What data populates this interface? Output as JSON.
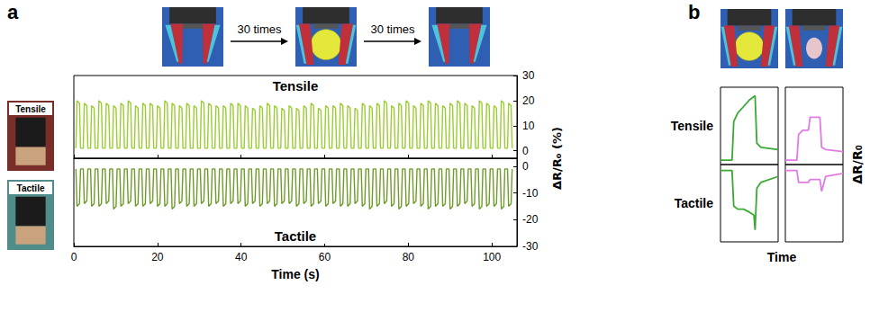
{
  "panel_a": {
    "label": "a",
    "steps": [
      "30 times",
      "30 times"
    ],
    "photo_labels": [
      "Tensile",
      "Tactile"
    ],
    "ylabel": "ΔR/R₀ (%)"
  },
  "panel_b": {
    "label": "b",
    "row_labels": [
      "Tensile",
      "Tactile"
    ],
    "ylabel": "ΔR/R₀",
    "xlabel": "Time"
  },
  "chart_data": [
    {
      "type": "line",
      "title": "Tensile",
      "color": "#9acd32",
      "x": [
        0.5,
        0.75,
        1.35,
        1.6,
        2.25,
        2.5,
        3.1,
        3.35,
        4,
        4.25,
        4.85,
        5.1,
        5.75,
        6,
        6.6,
        6.85,
        7.5,
        7.75,
        8.35,
        8.6,
        9.25,
        9.5,
        10.1,
        10.35,
        11,
        11.25,
        11.85,
        12.1,
        12.75,
        13,
        13.6,
        13.85,
        14.5,
        14.75,
        15.35,
        15.6,
        16.25,
        16.5,
        17.1,
        17.35,
        18,
        18.25,
        18.85,
        19.1,
        19.75,
        20,
        20.6,
        20.85,
        21.5,
        21.75,
        22.35,
        22.6,
        23.25,
        23.5,
        24.1,
        24.35,
        25,
        25.25,
        25.85,
        26.1,
        26.75,
        27,
        27.6,
        27.85,
        28.5,
        28.75,
        29.35,
        29.6,
        30.25,
        30.5,
        31.1,
        31.35,
        32,
        32.25,
        32.85,
        33.1,
        33.75,
        34,
        34.6,
        34.85,
        35.5,
        35.75,
        36.35,
        36.6,
        37.25,
        37.5,
        38.1,
        38.35,
        39,
        39.25,
        39.85,
        40.1,
        40.75,
        41,
        41.6,
        41.85,
        42.5,
        42.75,
        43.35,
        43.6,
        44.25,
        44.5,
        45.1,
        45.35,
        46,
        46.25,
        46.85,
        47.1,
        47.75,
        48,
        48.6,
        48.85,
        49.5,
        49.75,
        50.35,
        50.6,
        51.25,
        51.5,
        52.1,
        52.35,
        53,
        53.25,
        53.85,
        54.1,
        54.75,
        55,
        55.6,
        55.85,
        56.5,
        56.75,
        57.35,
        57.6,
        58.25,
        58.5,
        59.1,
        59.35,
        60,
        60.25,
        60.85,
        61.1,
        61.75,
        62,
        62.6,
        62.85,
        63.5,
        63.75,
        64.35,
        64.6,
        65.25,
        65.5,
        66.1,
        66.35,
        67,
        67.25,
        67.85,
        68.1,
        68.75,
        69,
        69.6,
        69.85,
        70.5,
        70.75,
        71.35,
        71.6,
        72.25,
        72.5,
        73.1,
        73.35,
        74,
        74.25,
        74.85,
        75.1,
        75.75,
        76,
        76.6,
        76.85,
        77.5,
        77.75,
        78.35,
        78.6,
        79.25,
        79.5,
        80.1,
        80.35,
        81,
        81.25,
        81.85,
        82.1,
        82.75,
        83,
        83.6,
        83.85,
        84.5,
        84.75,
        85.35,
        85.6,
        86.25,
        86.5,
        87.1,
        87.35,
        88,
        88.25,
        88.85,
        89.1,
        89.75,
        90,
        90.6,
        90.85,
        91.5,
        91.75,
        92.35,
        92.6,
        93.25,
        93.5,
        94.1,
        94.35,
        95,
        95.25,
        95.85,
        96.1,
        96.75,
        97,
        97.6,
        97.85,
        98.5,
        98.75,
        99.35,
        99.6,
        100.25,
        100.5,
        101.1,
        101.35,
        102,
        102.25,
        102.85,
        103.1,
        103.75,
        104,
        104.6,
        104.85
      ],
      "values": [
        1,
        20,
        19,
        1,
        1,
        19,
        18,
        1,
        1,
        18,
        17,
        1,
        1,
        20,
        19,
        1,
        1,
        19,
        18,
        1,
        1,
        18,
        17,
        1,
        1,
        19,
        18,
        1,
        1,
        20,
        19,
        1,
        1,
        18,
        17,
        1,
        1,
        19,
        18,
        1,
        1,
        19,
        18,
        1,
        1,
        18,
        17,
        1,
        1,
        20,
        19,
        1,
        1,
        19,
        18,
        1,
        1,
        18,
        17,
        1,
        1,
        19,
        18,
        1,
        1,
        18,
        17,
        1,
        1,
        20,
        19,
        1,
        1,
        19,
        18,
        1,
        1,
        18,
        17,
        1,
        1,
        18,
        17,
        1,
        1,
        19,
        18,
        1,
        1,
        19,
        18,
        1,
        1,
        18,
        17,
        1,
        1,
        17,
        16,
        1,
        1,
        18,
        17,
        1,
        1,
        19,
        18,
        1,
        1,
        18,
        17,
        1,
        1,
        17,
        16,
        1,
        1,
        18,
        17,
        1,
        1,
        17,
        16,
        1,
        1,
        18,
        17,
        1,
        1,
        19,
        18,
        1,
        1,
        17,
        16,
        1,
        1,
        18,
        17,
        1,
        1,
        18,
        17,
        1,
        1,
        19,
        18,
        1,
        1,
        18,
        17,
        1,
        1,
        17,
        16,
        1,
        1,
        19,
        18,
        1,
        1,
        18,
        17,
        1,
        1,
        19,
        18,
        1,
        1,
        20,
        19,
        1,
        1,
        18,
        17,
        1,
        1,
        19,
        18,
        1,
        1,
        20,
        19,
        1,
        1,
        18,
        17,
        1,
        1,
        19,
        18,
        1,
        1,
        20,
        19,
        1,
        1,
        19,
        18,
        1,
        1,
        18,
        17,
        1,
        1,
        19,
        18,
        1,
        1,
        20,
        19,
        1,
        1,
        19,
        18,
        1,
        1,
        18,
        17,
        1,
        1,
        20,
        19,
        1,
        1,
        19,
        18,
        1,
        1,
        18,
        17,
        1,
        1,
        20,
        19,
        1,
        1,
        19,
        18,
        1
      ],
      "xlim": [
        0,
        106
      ],
      "xticks": [
        0,
        20,
        40,
        60,
        80,
        100
      ],
      "ylim": [
        -3,
        30
      ],
      "yticks": [
        0,
        10,
        20,
        30
      ],
      "tick_labels": "y"
    },
    {
      "type": "line",
      "title": "Tactile",
      "xlabel": "Time (s)",
      "color": "#6e9b2a",
      "x": [
        0.5,
        0.75,
        1.35,
        1.6,
        2.25,
        2.5,
        3.1,
        3.35,
        4,
        4.25,
        4.85,
        5.1,
        5.75,
        6,
        6.6,
        6.85,
        7.5,
        7.75,
        8.35,
        8.6,
        9.25,
        9.5,
        10.1,
        10.35,
        11,
        11.25,
        11.85,
        12.1,
        12.75,
        13,
        13.6,
        13.85,
        14.5,
        14.75,
        15.35,
        15.6,
        16.25,
        16.5,
        17.1,
        17.35,
        18,
        18.25,
        18.85,
        19.1,
        19.75,
        20,
        20.6,
        20.85,
        21.5,
        21.75,
        22.35,
        22.6,
        23.25,
        23.5,
        24.1,
        24.35,
        25,
        25.25,
        25.85,
        26.1,
        26.75,
        27,
        27.6,
        27.85,
        28.5,
        28.75,
        29.35,
        29.6,
        30.25,
        30.5,
        31.1,
        31.35,
        32,
        32.25,
        32.85,
        33.1,
        33.75,
        34,
        34.6,
        34.85,
        35.5,
        35.75,
        36.35,
        36.6,
        37.25,
        37.5,
        38.1,
        38.35,
        39,
        39.25,
        39.85,
        40.1,
        40.75,
        41,
        41.6,
        41.85,
        42.5,
        42.75,
        43.35,
        43.6,
        44.25,
        44.5,
        45.1,
        45.35,
        46,
        46.25,
        46.85,
        47.1,
        47.75,
        48,
        48.6,
        48.85,
        49.5,
        49.75,
        50.35,
        50.6,
        51.25,
        51.5,
        52.1,
        52.35,
        53,
        53.25,
        53.85,
        54.1,
        54.75,
        55,
        55.6,
        55.85,
        56.5,
        56.75,
        57.35,
        57.6,
        58.25,
        58.5,
        59.1,
        59.35,
        60,
        60.25,
        60.85,
        61.1,
        61.75,
        62,
        62.6,
        62.85,
        63.5,
        63.75,
        64.35,
        64.6,
        65.25,
        65.5,
        66.1,
        66.35,
        67,
        67.25,
        67.85,
        68.1,
        68.75,
        69,
        69.6,
        69.85,
        70.5,
        70.75,
        71.35,
        71.6,
        72.25,
        72.5,
        73.1,
        73.35,
        74,
        74.25,
        74.85,
        75.1,
        75.75,
        76,
        76.6,
        76.85,
        77.5,
        77.75,
        78.35,
        78.6,
        79.25,
        79.5,
        80.1,
        80.35,
        81,
        81.25,
        81.85,
        82.1,
        82.75,
        83,
        83.6,
        83.85,
        84.5,
        84.75,
        85.35,
        85.6,
        86.25,
        86.5,
        87.1,
        87.35,
        88,
        88.25,
        88.85,
        89.1,
        89.75,
        90,
        90.6,
        90.85,
        91.5,
        91.75,
        92.35,
        92.6,
        93.25,
        93.5,
        94.1,
        94.35,
        95,
        95.25,
        95.85,
        96.1,
        96.75,
        97,
        97.6,
        97.85,
        98.5,
        98.75,
        99.35,
        99.6,
        100.25,
        100.5,
        101.1,
        101.35,
        102,
        102.25,
        102.85,
        103.1,
        103.75,
        104,
        104.6,
        104.85
      ],
      "values": [
        -1,
        -15,
        -14,
        -1,
        -1,
        -14,
        -13,
        -1,
        -1,
        -15,
        -14,
        -1,
        -1,
        -15,
        -14,
        -1,
        -1,
        -14,
        -13,
        -1,
        -1,
        -16,
        -15,
        -1,
        -1,
        -15,
        -14,
        -1,
        -1,
        -14,
        -13,
        -1,
        -1,
        -15,
        -14,
        -1,
        -1,
        -15,
        -14,
        -1,
        -1,
        -14,
        -13,
        -1,
        -1,
        -15,
        -14,
        -1,
        -1,
        -15,
        -14,
        -1,
        -1,
        -16,
        -15,
        -1,
        -1,
        -14,
        -13,
        -1,
        -1,
        -15,
        -14,
        -1,
        -1,
        -15,
        -14,
        -1,
        -1,
        -14,
        -13,
        -1,
        -1,
        -15,
        -14,
        -1,
        -1,
        -14,
        -13,
        -1,
        -1,
        -15,
        -14,
        -1,
        -1,
        -14,
        -13,
        -1,
        -1,
        -14,
        -13,
        -1,
        -1,
        -15,
        -14,
        -1,
        -1,
        -14,
        -13,
        -1,
        -1,
        -15,
        -14,
        -1,
        -1,
        -14,
        -13,
        -1,
        -1,
        -15,
        -14,
        -1,
        -1,
        -14,
        -13,
        -1,
        -1,
        -14,
        -13,
        -1,
        -1,
        -15,
        -14,
        -1,
        -1,
        -14,
        -13,
        -1,
        -1,
        -15,
        -14,
        -1,
        -1,
        -14,
        -13,
        -1,
        -1,
        -15,
        -14,
        -1,
        -1,
        -14,
        -13,
        -1,
        -1,
        -15,
        -14,
        -1,
        -1,
        -15,
        -14,
        -1,
        -1,
        -14,
        -13,
        -1,
        -1,
        -15,
        -14,
        -1,
        -1,
        -16,
        -15,
        -1,
        -1,
        -15,
        -14,
        -1,
        -1,
        -14,
        -13,
        -1,
        -1,
        -15,
        -14,
        -1,
        -1,
        -16,
        -15,
        -1,
        -1,
        -15,
        -14,
        -1,
        -1,
        -14,
        -13,
        -1,
        -1,
        -15,
        -14,
        -1,
        -1,
        -16,
        -15,
        -1,
        -1,
        -15,
        -14,
        -1,
        -1,
        -15,
        -14,
        -1,
        -1,
        -16,
        -15,
        -1,
        -1,
        -15,
        -14,
        -1,
        -1,
        -14,
        -13,
        -1,
        -1,
        -15,
        -14,
        -1,
        -1,
        -16,
        -15,
        -1,
        -1,
        -15,
        -14,
        -1,
        -1,
        -15,
        -14,
        -1,
        -1,
        -16,
        -15,
        -1,
        -1,
        -15,
        -14,
        -1
      ],
      "xlim": [
        0,
        106
      ],
      "xticks": [
        0,
        20,
        40,
        60,
        80,
        100
      ],
      "ylim": [
        -30,
        3
      ],
      "yticks": [
        -30,
        -20,
        -10,
        0
      ]
    },
    {
      "type": "line",
      "color": "#3aa935",
      "x": [
        0,
        2,
        2.3,
        3,
        4,
        5,
        6,
        6.3,
        7,
        10
      ],
      "values": [
        0,
        0,
        9,
        11,
        12.5,
        14,
        15,
        4,
        3,
        2.5
      ],
      "xlim": [
        0,
        10
      ],
      "ylim": [
        -1,
        17
      ],
      "tick_labels": false
    },
    {
      "type": "line",
      "color": "#e27ae6",
      "x": [
        0,
        2,
        2.3,
        3,
        4,
        4.3,
        6,
        6.3,
        7,
        10
      ],
      "values": [
        0,
        0,
        6,
        7,
        7,
        10,
        10,
        3,
        2.5,
        2
      ],
      "xlim": [
        0,
        10
      ],
      "ylim": [
        -1,
        17
      ],
      "tick_labels": false
    },
    {
      "type": "line",
      "color": "#3aa935",
      "x": [
        0,
        2,
        2.3,
        3,
        4,
        5,
        5.8,
        6,
        6.3,
        7,
        10
      ],
      "values": [
        0,
        0,
        -6,
        -6.5,
        -6.5,
        -7,
        -7.5,
        -10,
        -3,
        -2,
        -1
      ],
      "xlim": [
        0,
        10
      ],
      "ylim": [
        -12,
        1
      ],
      "tick_labels": false
    },
    {
      "type": "line",
      "color": "#e27ae6",
      "x": [
        0,
        2,
        2.3,
        4,
        4.3,
        6,
        6.3,
        7,
        10
      ],
      "values": [
        0,
        0,
        -2,
        -2,
        -1.5,
        -1.5,
        -3.5,
        -1,
        -0.5
      ],
      "xlim": [
        0,
        10
      ],
      "ylim": [
        -12,
        1
      ],
      "tick_labels": false
    }
  ]
}
